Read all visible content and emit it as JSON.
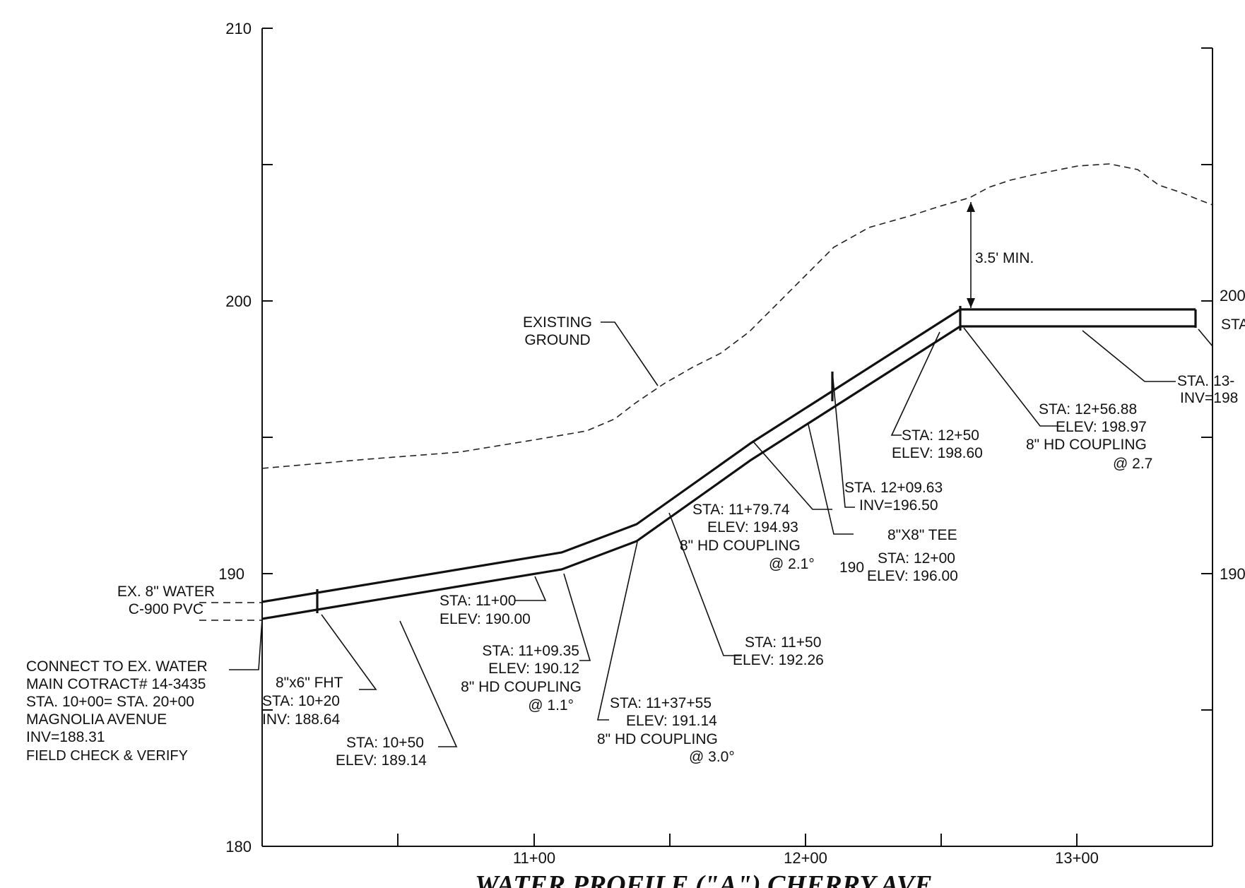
{
  "profile": {
    "title": "WATER PROFILE (\"A\") CHERRY AVE",
    "elevation_axis": {
      "min": 180,
      "max": 210,
      "left_tick_labels": [
        "210",
        "200",
        "190",
        "180"
      ],
      "right_tick_labels": [
        "200",
        "190"
      ]
    },
    "station_axis": {
      "tick_labels": [
        "11+00",
        "12+00",
        "13+00"
      ]
    },
    "pipe_elevations": [
      {
        "sta": 1000,
        "elev": 188.31
      },
      {
        "sta": 1020,
        "elev": 188.64
      },
      {
        "sta": 1050,
        "elev": 189.14
      },
      {
        "sta": 1100,
        "elev": 190.0
      },
      {
        "sta": 1109.35,
        "elev": 190.12
      },
      {
        "sta": 1137.55,
        "elev": 191.14
      },
      {
        "sta": 1150,
        "elev": 192.26
      },
      {
        "sta": 1179.74,
        "elev": 194.93
      },
      {
        "sta": 1200,
        "elev": 196.0
      },
      {
        "sta": 1209.63,
        "elev": 196.5
      },
      {
        "sta": 1250,
        "elev": 198.6
      },
      {
        "sta": 1256.88,
        "elev": 198.97
      }
    ],
    "labels": {
      "existing_ground": [
        "EXISTING",
        "GROUND"
      ],
      "min_cover": "3.5' MIN.",
      "ex_water": [
        "EX. 8\" WATER",
        "C-900 PVC"
      ],
      "connect": [
        "CONNECT TO EX. WATER",
        "MAIN COTRACT# 14-3435",
        "STA. 10+00= STA. 20+00",
        "MAGNOLIA AVENUE",
        "INV=188.31",
        "FIELD CHECK & VERIFY"
      ],
      "fht": [
        "8\"x6\" FHT",
        "STA: 10+20",
        "INV: 188.64"
      ],
      "sta_1050": [
        "STA: 10+50",
        "ELEV: 189.14"
      ],
      "sta_1100": [
        "STA: 11+00",
        "ELEV: 190.00"
      ],
      "sta_110935": [
        "STA: 11+09.35",
        "ELEV: 190.12",
        "8\" HD COUPLING",
        "@ 1.1°"
      ],
      "sta_113755": [
        "STA: 11+37+55",
        "ELEV: 191.14",
        "8\" HD COUPLING",
        "@ 3.0°"
      ],
      "sta_1150": [
        "STA: 11+50",
        "ELEV: 192.26"
      ],
      "sta_117974": [
        "STA: 11+79.74",
        "ELEV: 194.93",
        "8\" HD COUPLING",
        "@ 2.1°"
      ],
      "grid_190": "190",
      "tee": [
        "8\"X8\" TEE",
        "STA: 12+00",
        "ELEV: 196.00"
      ],
      "sta_120963": [
        "STA. 12+09.63",
        "INV=196.50"
      ],
      "sta_1250": [
        "STA: 12+50",
        "ELEV: 198.60"
      ],
      "sta_125688": [
        "STA: 12+56.88",
        "ELEV: 198.97",
        "8\" HD COUPLING",
        "@ 2.7"
      ],
      "right_edge": [
        "STA. 13-",
        "INV=198",
        "STA"
      ]
    }
  }
}
